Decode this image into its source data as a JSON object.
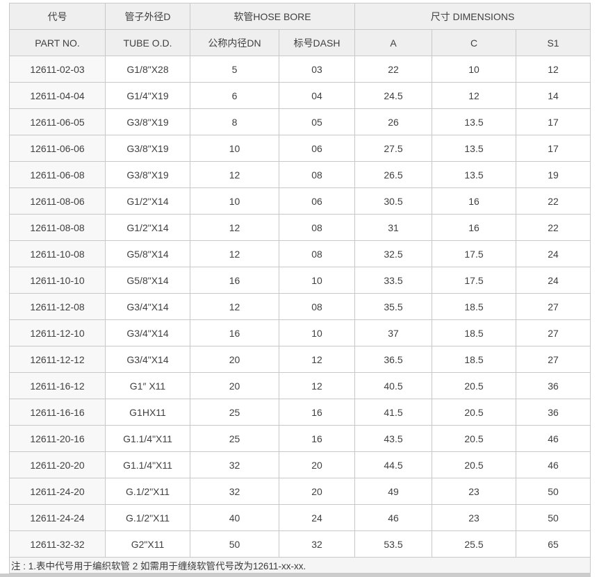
{
  "table": {
    "header": {
      "part_no_top": "代号",
      "part_no_bottom": "PART NO.",
      "tube_od_top": "管子外径D",
      "tube_od_bottom": "TUBE O.D.",
      "hose_bore_group": "软管HOSE BORE",
      "hose_bore_cols": [
        "公称内径DN",
        "标号DASH"
      ],
      "dimensions_group": "尺寸 DIMENSIONS",
      "dimensions_cols": [
        "A",
        "C",
        "S1"
      ]
    },
    "rows": [
      [
        "12611-02-03",
        "G1/8\"X28",
        "5",
        "03",
        "22",
        "10",
        "12"
      ],
      [
        "12611-04-04",
        "G1/4\"X19",
        "6",
        "04",
        "24.5",
        "12",
        "14"
      ],
      [
        "12611-06-05",
        "G3/8\"X19",
        "8",
        "05",
        "26",
        "13.5",
        "17"
      ],
      [
        "12611-06-06",
        "G3/8\"X19",
        "10",
        "06",
        "27.5",
        "13.5",
        "17"
      ],
      [
        "12611-06-08",
        "G3/8\"X19",
        "12",
        "08",
        "26.5",
        "13.5",
        "19"
      ],
      [
        "12611-08-06",
        "G1/2\"X14",
        "10",
        "06",
        "30.5",
        "16",
        "22"
      ],
      [
        "12611-08-08",
        "G1/2\"X14",
        "12",
        "08",
        "31",
        "16",
        "22"
      ],
      [
        "12611-10-08",
        "G5/8\"X14",
        "12",
        "08",
        "32.5",
        "17.5",
        "24"
      ],
      [
        "12611-10-10",
        "G5/8\"X14",
        "16",
        "10",
        "33.5",
        "17.5",
        "24"
      ],
      [
        "12611-12-08",
        "G3/4\"X14",
        "12",
        "08",
        "35.5",
        "18.5",
        "27"
      ],
      [
        "12611-12-10",
        "G3/4\"X14",
        "16",
        "10",
        "37",
        "18.5",
        "27"
      ],
      [
        "12611-12-12",
        "G3/4\"X14",
        "20",
        "12",
        "36.5",
        "18.5",
        "27"
      ],
      [
        "12611-16-12",
        "G1″ X11",
        "20",
        "12",
        "40.5",
        "20.5",
        "36"
      ],
      [
        "12611-16-16",
        "G1HX11",
        "25",
        "16",
        "41.5",
        "20.5",
        "36"
      ],
      [
        "12611-20-16",
        "G1.1/4\"X11",
        "25",
        "16",
        "43.5",
        "20.5",
        "46"
      ],
      [
        "12611-20-20",
        "G1.1/4\"X11",
        "32",
        "20",
        "44.5",
        "20.5",
        "46"
      ],
      [
        "12611-24-20",
        "G.1/2\"X11",
        "32",
        "20",
        "49",
        "23",
        "50"
      ],
      [
        "12611-24-24",
        "G.1/2\"X11",
        "40",
        "24",
        "46",
        "23",
        "50"
      ],
      [
        "12611-32-32",
        "G2\"X11",
        "50",
        "32",
        "53.5",
        "25.5",
        "65"
      ]
    ],
    "note": "注 : 1.表中代号用于编织软管 2 如需用于缠绕软管代号改为12611-xx-xx."
  },
  "colors": {
    "border": "#c8c8c8",
    "header_bg": "#efefef",
    "first_col_bg": "#f8f8f8",
    "note_bg": "#f5f5f5",
    "text": "#3f3f3f"
  }
}
